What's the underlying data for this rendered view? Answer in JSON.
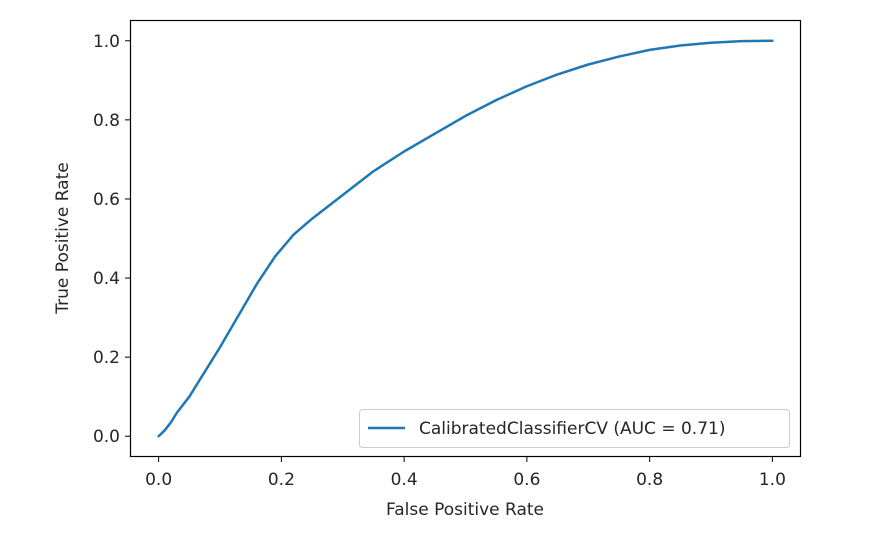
{
  "chart_data": {
    "type": "line",
    "title": "",
    "xlabel": "False Positive Rate",
    "ylabel": "True Positive Rate",
    "xlim": [
      -0.045,
      1.045
    ],
    "ylim": [
      -0.05,
      1.05
    ],
    "xticks": [
      0.0,
      0.2,
      0.4,
      0.6,
      0.8,
      1.0
    ],
    "xtick_labels": [
      "0.0",
      "0.2",
      "0.4",
      "0.6",
      "0.8",
      "1.0"
    ],
    "yticks": [
      0.0,
      0.2,
      0.4,
      0.6,
      0.8,
      1.0
    ],
    "ytick_labels": [
      "0.0",
      "0.2",
      "0.4",
      "0.6",
      "0.8",
      "1.0"
    ],
    "grid": false,
    "legend_position": "lower-right",
    "series": [
      {
        "name": "CalibratedClassifierCV (AUC = 0.71)",
        "color": "#1f77b4",
        "x": [
          0.0,
          0.01,
          0.02,
          0.03,
          0.05,
          0.07,
          0.1,
          0.13,
          0.16,
          0.19,
          0.22,
          0.25,
          0.3,
          0.35,
          0.4,
          0.45,
          0.5,
          0.55,
          0.6,
          0.65,
          0.7,
          0.75,
          0.8,
          0.85,
          0.9,
          0.95,
          1.0
        ],
        "y": [
          0.0,
          0.015,
          0.035,
          0.06,
          0.1,
          0.15,
          0.225,
          0.305,
          0.385,
          0.455,
          0.51,
          0.55,
          0.61,
          0.67,
          0.72,
          0.765,
          0.81,
          0.85,
          0.885,
          0.915,
          0.94,
          0.96,
          0.977,
          0.988,
          0.995,
          0.999,
          1.0
        ]
      }
    ]
  }
}
